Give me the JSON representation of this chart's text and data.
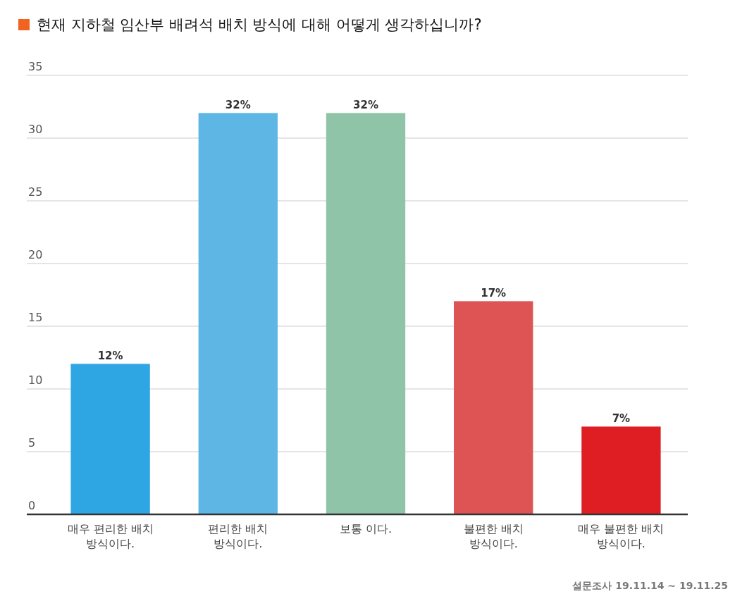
{
  "chart_data": {
    "type": "bar",
    "title": "현재 지하철 임산부 배려석 배치 방식에 대해 어떻게 생각하십니까?",
    "categories": [
      "매우 편리한 배치 방식이다.",
      "편리한 배치 방식이다.",
      "보통 이다.",
      "불편한 배치 방식이다.",
      "매우 불편한 배치 방식이다."
    ],
    "values": [
      12,
      32,
      32,
      17,
      7
    ],
    "colors": [
      "#2ea6e4",
      "#5eb6e4",
      "#8fc4a8",
      "#de5455",
      "#de1e22"
    ],
    "value_labels": [
      "12%",
      "32%",
      "32%",
      "17%",
      "7%"
    ],
    "ylim": [
      0,
      35
    ],
    "yticks": [
      0,
      5,
      10,
      15,
      20,
      25,
      30,
      35
    ],
    "grid": "y",
    "annotations": [
      "설문조사 19.11.14 ~ 19.11.25"
    ]
  }
}
